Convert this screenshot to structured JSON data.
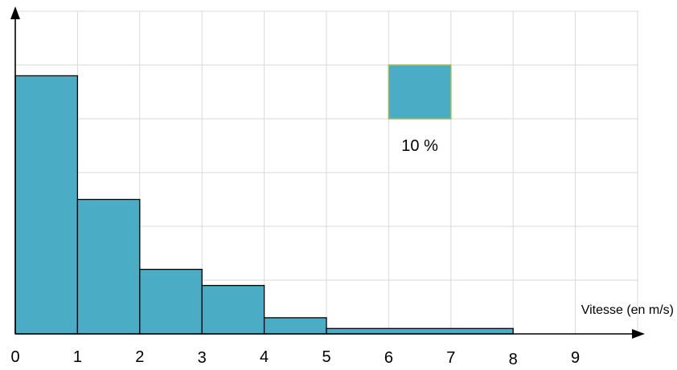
{
  "chart_data": {
    "type": "histogram",
    "title": "",
    "xlabel": "Vitesse (en m/s)",
    "ylabel": "",
    "xlim": [
      0,
      10
    ],
    "ylim": [
      0,
      60
    ],
    "grid": true,
    "x_ticks": [
      "0",
      "1",
      "2",
      "3",
      "4",
      "5",
      "6",
      "7",
      "8",
      "9"
    ],
    "bins": [
      {
        "from": 0,
        "to": 1,
        "value": 48
      },
      {
        "from": 1,
        "to": 2,
        "value": 25
      },
      {
        "from": 2,
        "to": 3,
        "value": 12
      },
      {
        "from": 3,
        "to": 4,
        "value": 9
      },
      {
        "from": 4,
        "to": 5,
        "value": 3
      },
      {
        "from": 5,
        "to": 8,
        "value": 1
      }
    ],
    "scale_legend": {
      "label": "10 %",
      "represents_percent": 10,
      "x_range": [
        6,
        7
      ],
      "y_range": [
        40,
        50
      ]
    },
    "colors": {
      "bar_fill": "#4bacc6",
      "legend_border": "#9bbb59",
      "grid": "#d9d9d9",
      "axis": "#000000"
    }
  }
}
